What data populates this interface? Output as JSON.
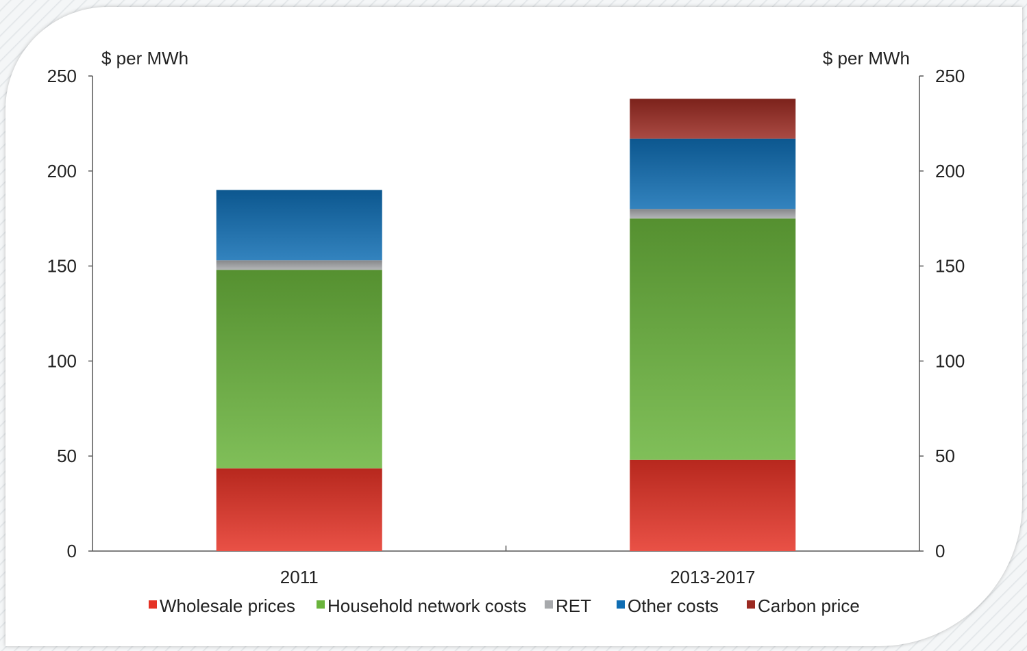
{
  "chart_data": {
    "type": "bar",
    "stacked": true,
    "categories": [
      "2011",
      "2013-2017"
    ],
    "series": [
      {
        "name": "Wholesale prices",
        "values": [
          43.5,
          48
        ],
        "color": "#e53225"
      },
      {
        "name": "Household network costs",
        "values": [
          104.5,
          127
        ],
        "color": "#6ab43c"
      },
      {
        "name": "RET",
        "values": [
          5,
          5
        ],
        "color": "#a7a9ac"
      },
      {
        "name": "Other costs",
        "values": [
          37,
          37
        ],
        "color": "#0f6db3"
      },
      {
        "name": "Carbon price",
        "values": [
          0,
          21
        ],
        "color": "#9b2a22"
      }
    ],
    "ylabel_left": "$ per MWh",
    "ylabel_right": "$ per MWh",
    "ylim": [
      0,
      250
    ],
    "yticks": [
      0,
      50,
      100,
      150,
      200,
      250
    ],
    "grid": false,
    "legend_position": "bottom"
  }
}
